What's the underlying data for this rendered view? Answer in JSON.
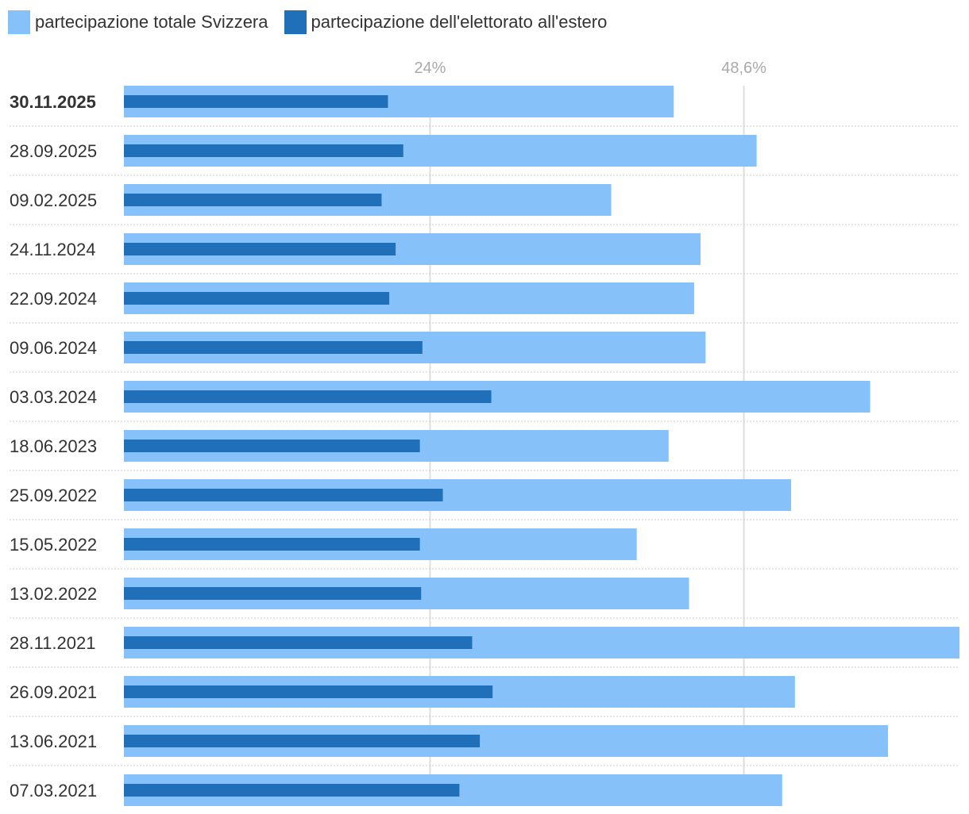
{
  "legend": {
    "total_label": "partecipazione totale Svizzera",
    "abroad_label": "partecipazione dell'elettorato all'estero"
  },
  "colors": {
    "total": "#86c1f9",
    "abroad": "#1f6fb9",
    "grid": "#dddddd",
    "separator": "#cccccc"
  },
  "chart_data": {
    "type": "bar",
    "orientation": "horizontal",
    "title": "",
    "xlabel": "",
    "ylabel": "",
    "xlim": [
      0,
      65.5
    ],
    "ticks": [
      {
        "value": 24,
        "label": "24%"
      },
      {
        "value": 48.6,
        "label": "48,6%"
      }
    ],
    "categories": [
      "30.11.2025",
      "28.09.2025",
      "09.02.2025",
      "24.11.2024",
      "22.09.2024",
      "09.06.2024",
      "03.03.2024",
      "18.06.2023",
      "25.09.2022",
      "15.05.2022",
      "13.02.2022",
      "28.11.2021",
      "26.09.2021",
      "13.06.2021",
      "07.03.2021"
    ],
    "series": [
      {
        "name": "partecipazione totale Svizzera",
        "values": [
          43.1,
          49.6,
          38.2,
          45.2,
          44.7,
          45.6,
          58.5,
          42.7,
          52.3,
          40.2,
          44.3,
          65.5,
          52.6,
          59.9,
          51.6
        ]
      },
      {
        "name": "partecipazione dell'elettorato all'estero",
        "values": [
          20.7,
          21.9,
          20.2,
          21.3,
          20.8,
          23.4,
          28.8,
          23.2,
          25.0,
          23.2,
          23.3,
          27.3,
          28.9,
          27.9,
          26.3
        ]
      }
    ],
    "highlighted_category": "30.11.2025"
  }
}
